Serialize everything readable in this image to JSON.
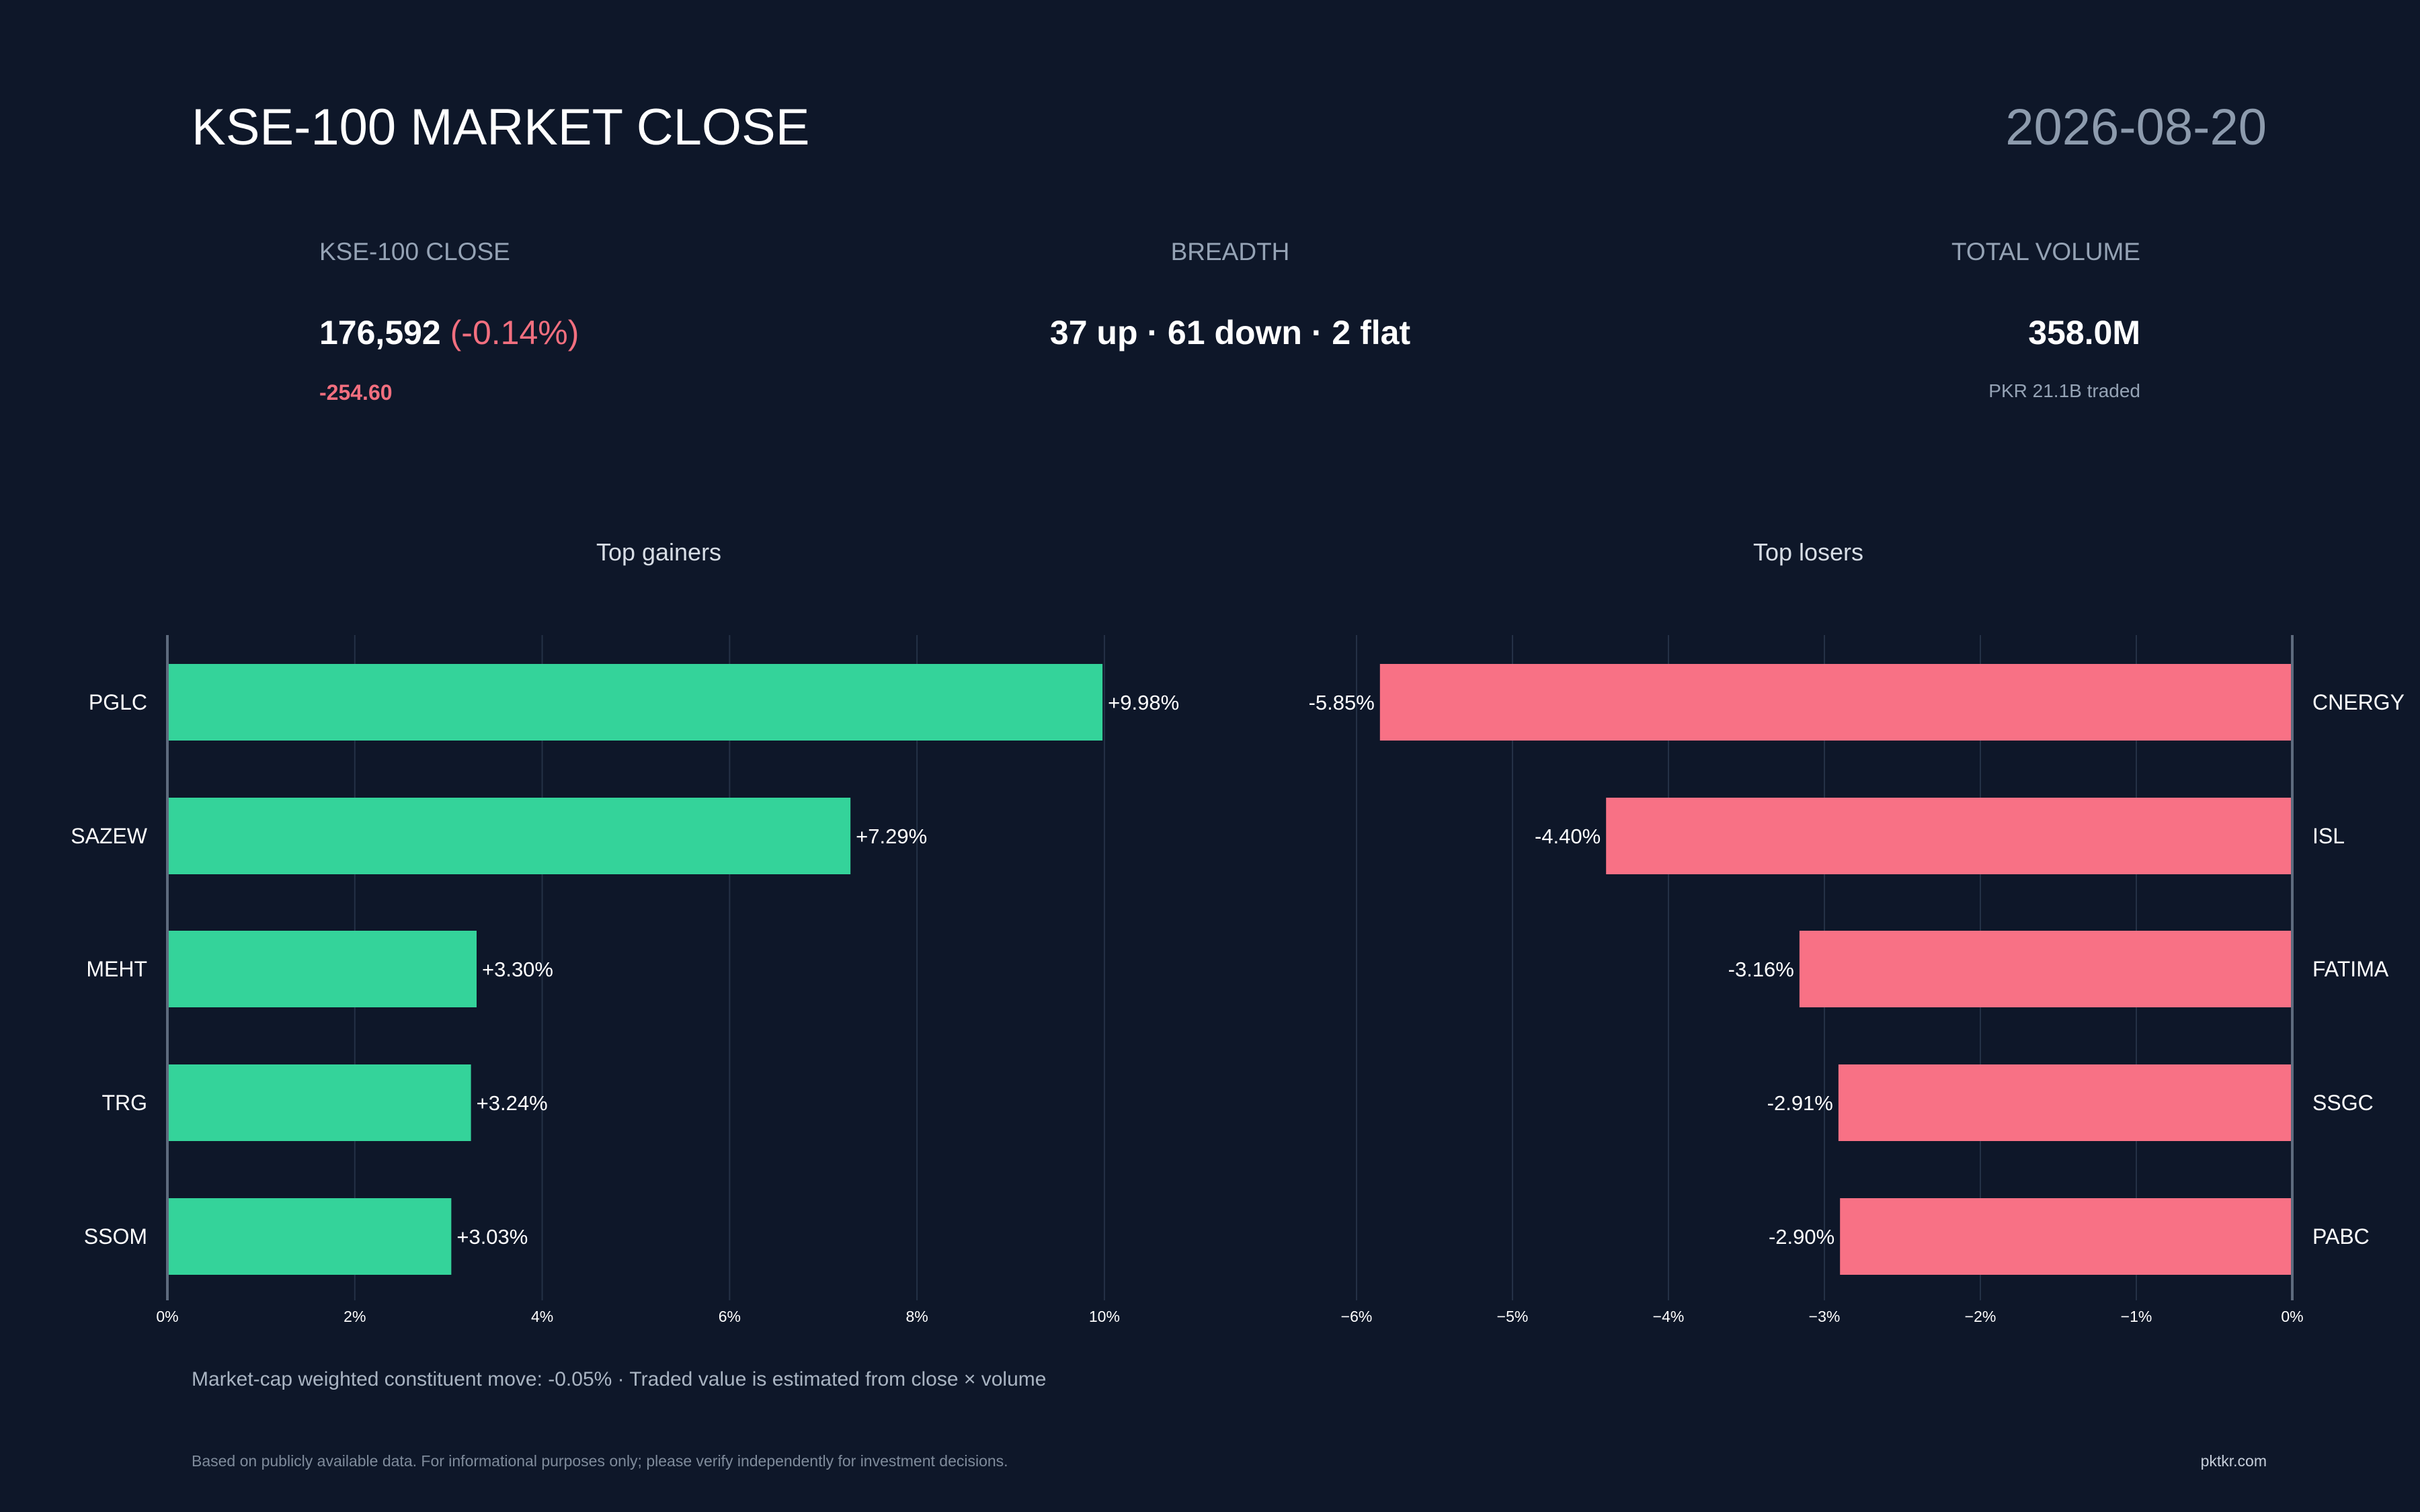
{
  "header": {
    "title": "KSE-100 MARKET CLOSE",
    "date": "2026-08-20"
  },
  "stats": {
    "close": {
      "label": "KSE-100 CLOSE",
      "value": "176,592",
      "pct": "(-0.14%)",
      "change": "-254.60"
    },
    "breadth": {
      "label": "BREADTH",
      "value": "37 up · 61 down · 2 flat"
    },
    "volume": {
      "label": "TOTAL VOLUME",
      "value": "358.0M",
      "sub": "PKR 21.1B traded"
    }
  },
  "colors": {
    "background": "#0e1729",
    "gain": "#34d39a",
    "loss": "#f87185",
    "grid": "#243146",
    "axis": "#5e6b7e"
  },
  "chart_data": [
    {
      "type": "bar",
      "orientation": "horizontal",
      "title": "Top gainers",
      "categories": [
        "PGLC",
        "SAZEW",
        "MEHT",
        "TRG",
        "SSOM"
      ],
      "values": [
        9.98,
        7.29,
        3.3,
        3.24,
        3.03
      ],
      "value_labels": [
        "+9.98%",
        "+7.29%",
        "+3.30%",
        "+3.24%",
        "+3.03%"
      ],
      "xlim": [
        0,
        11.5
      ],
      "xticks": [
        0,
        2,
        4,
        6,
        8,
        10
      ],
      "xtick_labels": [
        "0%",
        "2%",
        "4%",
        "6%",
        "8%",
        "10%"
      ],
      "grid": true
    },
    {
      "type": "bar",
      "orientation": "horizontal",
      "title": "Top losers",
      "categories": [
        "CNERGY",
        "ISL",
        "FATIMA",
        "SSGC",
        "PABC"
      ],
      "values": [
        -5.85,
        -4.4,
        -3.16,
        -2.91,
        -2.9
      ],
      "value_labels": [
        "-5.85%",
        "-4.40%",
        "-3.16%",
        "-2.91%",
        "-2.90%"
      ],
      "xlim": [
        -6.25,
        0
      ],
      "xticks": [
        -6,
        -5,
        -4,
        -3,
        -2,
        -1,
        0
      ],
      "xtick_labels": [
        "−6%",
        "−5%",
        "−4%",
        "−3%",
        "−2%",
        "−1%",
        "0%"
      ],
      "grid": true
    }
  ],
  "footer": {
    "note": "Market-cap weighted constituent move: -0.05% · Traded value is estimated from close × volume",
    "disclaimer": "Based on publicly available data. For informational purposes only; please verify independently for investment decisions.",
    "source": "pktkr.com"
  }
}
